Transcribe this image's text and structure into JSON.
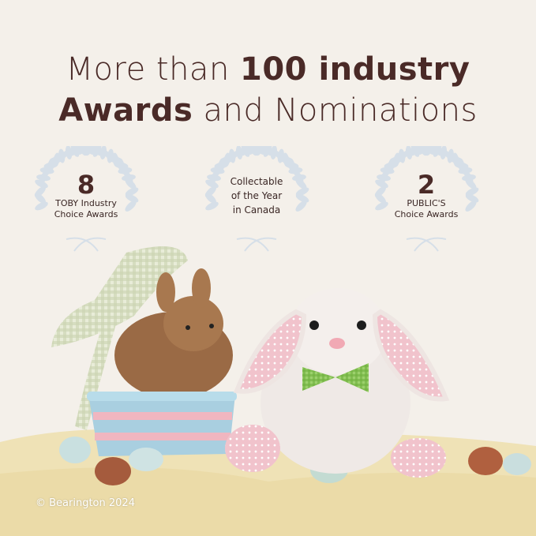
{
  "headline": {
    "line1_regular": "More than ",
    "line1_bold": "100 industry",
    "line2_bold": "Awards",
    "line2_regular": " and Nominations"
  },
  "awards": [
    {
      "number": "8",
      "label_line1": "TOBY Industry",
      "label_line2": "Choice Awards"
    },
    {
      "number": "",
      "label_line1": "Collectable",
      "label_line2": "of the Year",
      "label_line3": "in Canada"
    },
    {
      "number": "2",
      "label_line1": "PUBLIC'S",
      "label_line2": "Choice Awards"
    }
  ],
  "copyright": "© Bearington 2024",
  "colors": {
    "headline": "#4a2a27",
    "wreath": "#d6dfe8",
    "background": "#f4f0ea"
  }
}
